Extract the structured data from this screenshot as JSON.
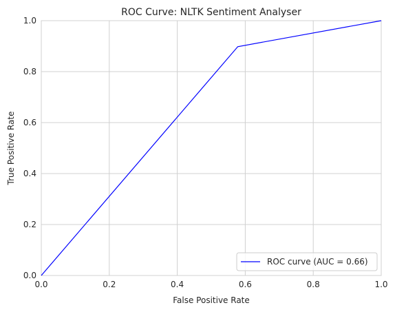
{
  "chart_data": {
    "type": "line",
    "title": "ROC Curve: NLTK Sentiment Analyser",
    "xlabel": "False Positive Rate",
    "ylabel": "True Positive Rate",
    "xlim": [
      0.0,
      1.0
    ],
    "ylim": [
      0.0,
      1.0
    ],
    "xticks": [
      0.0,
      0.2,
      0.4,
      0.6,
      0.8,
      1.0
    ],
    "yticks": [
      0.0,
      0.2,
      0.4,
      0.6,
      0.8,
      1.0
    ],
    "xtick_labels": [
      "0.0",
      "0.2",
      "0.4",
      "0.6",
      "0.8",
      "1.0"
    ],
    "ytick_labels": [
      "0.0",
      "0.2",
      "0.4",
      "0.6",
      "0.8",
      "1.0"
    ],
    "grid": true,
    "legend_position": "lower-right",
    "series": [
      {
        "name": "ROC curve (AUC = 0.66)",
        "color": "#0000ff",
        "x": [
          0.0,
          0.578,
          1.0
        ],
        "y": [
          0.0,
          0.898,
          1.0
        ]
      }
    ]
  }
}
